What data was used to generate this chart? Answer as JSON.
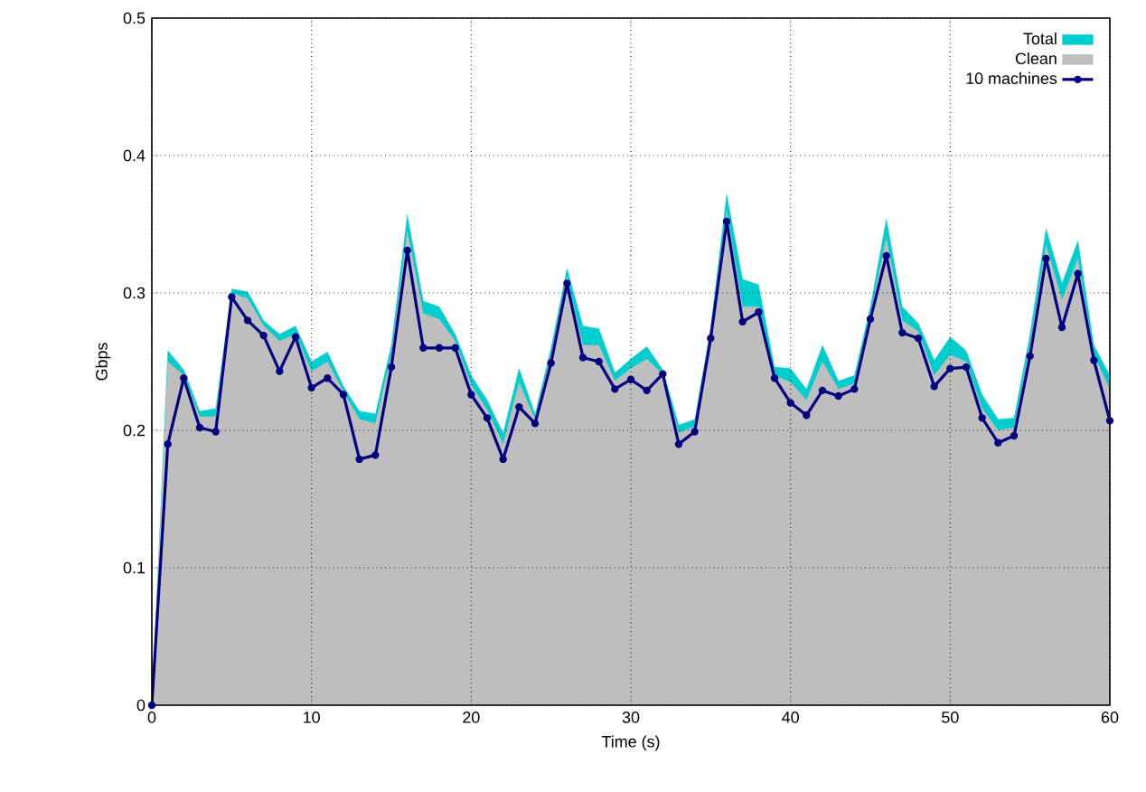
{
  "chart_data": {
    "type": "area",
    "xlabel": "Time (s)",
    "ylabel": "Gbps",
    "x": [
      0,
      1,
      2,
      3,
      4,
      5,
      6,
      7,
      8,
      9,
      10,
      11,
      12,
      13,
      14,
      15,
      16,
      17,
      18,
      19,
      20,
      21,
      22,
      23,
      24,
      25,
      26,
      27,
      28,
      29,
      30,
      31,
      32,
      33,
      34,
      35,
      36,
      37,
      38,
      39,
      40,
      41,
      42,
      43,
      44,
      45,
      46,
      47,
      48,
      49,
      50,
      51,
      52,
      53,
      54,
      55,
      56,
      57,
      58,
      59,
      60
    ],
    "series": [
      {
        "name": "Total",
        "color": "#00cdcd",
        "values": [
          0,
          0.258,
          0.244,
          0.214,
          0.216,
          0.303,
          0.301,
          0.28,
          0.27,
          0.276,
          0.25,
          0.257,
          0.232,
          0.214,
          0.212,
          0.262,
          0.357,
          0.294,
          0.29,
          0.27,
          0.24,
          0.222,
          0.198,
          0.245,
          0.212,
          0.26,
          0.318,
          0.276,
          0.274,
          0.242,
          0.252,
          0.261,
          0.244,
          0.204,
          0.208,
          0.275,
          0.372,
          0.31,
          0.306,
          0.246,
          0.245,
          0.23,
          0.262,
          0.236,
          0.24,
          0.29,
          0.354,
          0.29,
          0.278,
          0.251,
          0.268,
          0.258,
          0.226,
          0.208,
          0.209,
          0.27,
          0.347,
          0.307,
          0.338,
          0.262,
          0.24
        ]
      },
      {
        "name": "Clean",
        "color": "#bebebe",
        "values": [
          0,
          0.25,
          0.24,
          0.21,
          0.21,
          0.3,
          0.296,
          0.276,
          0.265,
          0.27,
          0.243,
          0.25,
          0.228,
          0.208,
          0.205,
          0.255,
          0.345,
          0.285,
          0.281,
          0.265,
          0.233,
          0.215,
          0.19,
          0.235,
          0.208,
          0.255,
          0.312,
          0.262,
          0.262,
          0.236,
          0.245,
          0.252,
          0.241,
          0.198,
          0.203,
          0.27,
          0.36,
          0.29,
          0.29,
          0.24,
          0.235,
          0.222,
          0.25,
          0.23,
          0.234,
          0.285,
          0.34,
          0.28,
          0.272,
          0.24,
          0.255,
          0.25,
          0.216,
          0.2,
          0.202,
          0.262,
          0.335,
          0.295,
          0.325,
          0.255,
          0.23
        ]
      },
      {
        "name": "10 machines",
        "type": "line",
        "color": "#000080",
        "marker": "circle",
        "values": [
          0,
          0.19,
          0.238,
          0.202,
          0.199,
          0.297,
          0.28,
          0.269,
          0.243,
          0.268,
          0.231,
          0.238,
          0.226,
          0.179,
          0.182,
          0.246,
          0.331,
          0.26,
          0.26,
          0.26,
          0.226,
          0.209,
          0.179,
          0.217,
          0.205,
          0.249,
          0.307,
          0.253,
          0.25,
          0.23,
          0.237,
          0.229,
          0.241,
          0.19,
          0.199,
          0.267,
          0.352,
          0.279,
          0.286,
          0.238,
          0.22,
          0.211,
          0.229,
          0.225,
          0.23,
          0.281,
          0.327,
          0.271,
          0.267,
          0.232,
          0.245,
          0.246,
          0.209,
          0.191,
          0.196,
          0.254,
          0.325,
          0.275,
          0.314,
          0.251,
          0.207
        ]
      }
    ],
    "xlim": [
      0,
      60
    ],
    "ylim": [
      0,
      0.5
    ],
    "xticks": [
      0,
      10,
      20,
      30,
      40,
      50,
      60
    ],
    "yticks": [
      0,
      0.1,
      0.2,
      0.3,
      0.4,
      0.5
    ],
    "grid": true,
    "legend": "top right"
  }
}
